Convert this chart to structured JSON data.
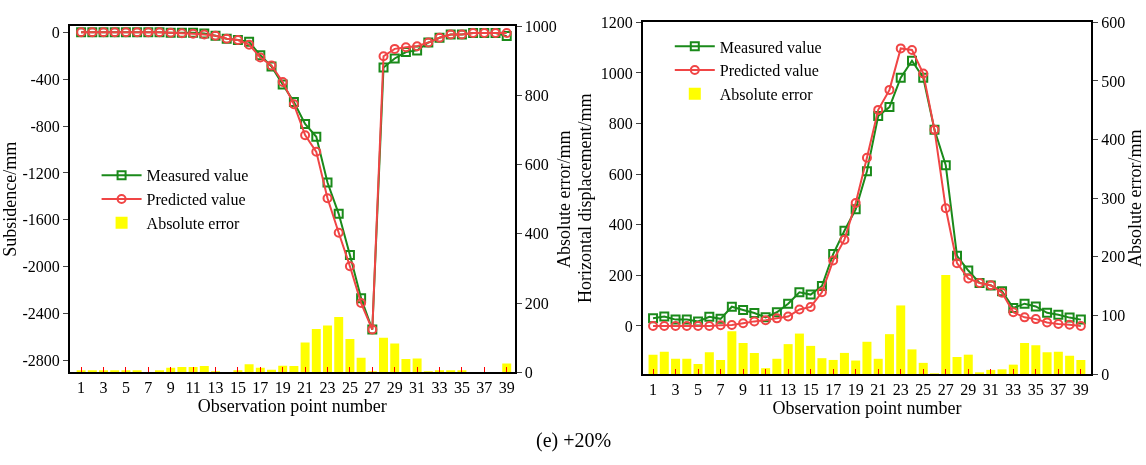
{
  "chart_data": [
    {
      "type": "line",
      "xlabel": "Observation point number",
      "ylabel": "Subsidence/mm",
      "y2label": "Absolute error/mm",
      "x": [
        1,
        2,
        3,
        4,
        5,
        6,
        7,
        8,
        9,
        10,
        11,
        12,
        13,
        14,
        15,
        16,
        17,
        18,
        19,
        20,
        21,
        22,
        23,
        24,
        25,
        26,
        27,
        28,
        29,
        30,
        31,
        32,
        33,
        34,
        35,
        36,
        37,
        38,
        39
      ],
      "xlim": [
        0,
        39.7
      ],
      "xticks": [
        1,
        3,
        5,
        7,
        9,
        11,
        13,
        15,
        17,
        19,
        21,
        23,
        25,
        27,
        29,
        31,
        33,
        35,
        37,
        39
      ],
      "ylim": [
        -2900,
        50
      ],
      "yticks": [
        0,
        -400,
        -800,
        -1200,
        -1600,
        -2000,
        -2400,
        -2800
      ],
      "y2lim": [
        0,
        1000
      ],
      "y2ticks": [
        0,
        200,
        400,
        600,
        800,
        1000
      ],
      "legend": "left",
      "line_style": "solid",
      "annotations": [
        "(e) +20%"
      ],
      "series": [
        {
          "name": "Measured value",
          "color": "#1a8a1a",
          "marker": "square",
          "values": [
            0,
            0,
            0,
            0,
            0,
            0,
            0,
            0,
            -5,
            -5,
            -5,
            -10,
            -30,
            -55,
            -66,
            -82,
            -196,
            -292,
            -445,
            -595,
            -783,
            -892,
            -1282,
            -1549,
            -1901,
            -2269,
            -2536,
            -300,
            -224,
            -169,
            -155,
            -88,
            -47,
            -20,
            -20,
            -6,
            -6,
            -6,
            -33
          ]
        },
        {
          "name": "Predicted value",
          "color": "#f04545",
          "marker": "circle",
          "values": [
            0,
            0,
            0,
            0,
            0,
            0,
            0,
            0,
            -5,
            -8,
            -12,
            -20,
            -30,
            -55,
            -66,
            -106,
            -216,
            -284,
            -425,
            -615,
            -878,
            -1020,
            -1416,
            -1710,
            -1996,
            -2310,
            -2536,
            -205,
            -142,
            -128,
            -120,
            -88,
            -47,
            -20,
            -20,
            -6,
            -6,
            -6,
            -6
          ]
        },
        {
          "name": "Absolute error",
          "type": "bar",
          "axis": "y2",
          "color": "#ffff00",
          "values": [
            5,
            5,
            5,
            3,
            5,
            5,
            0,
            3,
            13,
            15,
            15,
            18,
            2,
            0,
            6,
            23,
            13,
            7,
            19,
            18,
            86,
            125,
            135,
            160,
            96,
            42,
            1,
            100,
            83,
            38,
            40,
            1,
            6,
            6,
            5,
            0,
            0,
            0,
            25
          ]
        }
      ]
    },
    {
      "type": "line",
      "xlabel": "Observation point number",
      "ylabel": "Horizontal displacement/mm",
      "y2label": "Absolute error/mm",
      "x": [
        1,
        2,
        3,
        4,
        5,
        6,
        7,
        8,
        9,
        10,
        11,
        12,
        13,
        14,
        15,
        16,
        17,
        18,
        19,
        20,
        21,
        22,
        23,
        24,
        25,
        26,
        27,
        28,
        29,
        30,
        31,
        32,
        33,
        34,
        35,
        36,
        37,
        38,
        39
      ],
      "xlim": [
        0.1,
        39.9
      ],
      "xticks": [
        1,
        3,
        5,
        7,
        9,
        11,
        13,
        15,
        17,
        19,
        21,
        23,
        25,
        27,
        29,
        31,
        33,
        35,
        37,
        39
      ],
      "ylim": [
        -190,
        1200
      ],
      "yticks": [
        0,
        200,
        400,
        600,
        800,
        1000,
        1200
      ],
      "y2lim": [
        0,
        600
      ],
      "y2ticks": [
        0,
        100,
        200,
        300,
        400,
        500,
        600
      ],
      "legend": "top left",
      "line_style": "solid",
      "series": [
        {
          "name": "Measured value",
          "color": "#1a8a1a",
          "marker": "square",
          "values": [
            30,
            37,
            25,
            25,
            18,
            36,
            28,
            76,
            63,
            51,
            34,
            54,
            88,
            133,
            124,
            158,
            284,
            376,
            461,
            611,
            830,
            865,
            981,
            1048,
            981,
            775,
            635,
            277,
            219,
            170,
            160,
            137,
            71,
            88,
            77,
            52,
            44,
            33,
            25
          ]
        },
        {
          "name": "Predicted value",
          "color": "#f04545",
          "marker": "circle",
          "values": [
            0,
            0,
            0,
            0,
            0,
            0,
            3,
            4,
            11,
            18,
            23,
            30,
            37,
            65,
            75,
            133,
            259,
            341,
            486,
            665,
            854,
            933,
            1097,
            1091,
            998,
            775,
            465,
            248,
            188,
            170,
            161,
            131,
            54,
            34,
            27,
            14,
            8,
            5,
            0
          ]
        },
        {
          "name": "Absolute error",
          "type": "bar",
          "axis": "y2",
          "color": "#ffff00",
          "values": [
            33,
            38,
            26,
            26,
            17,
            37,
            24,
            73,
            53,
            36,
            10,
            26,
            51,
            69,
            48,
            27,
            24,
            36,
            23,
            55,
            26,
            68,
            117,
            42,
            19,
            1,
            169,
            29,
            33,
            2,
            7,
            8,
            16,
            53,
            49,
            37,
            38,
            31,
            24
          ]
        }
      ]
    }
  ]
}
